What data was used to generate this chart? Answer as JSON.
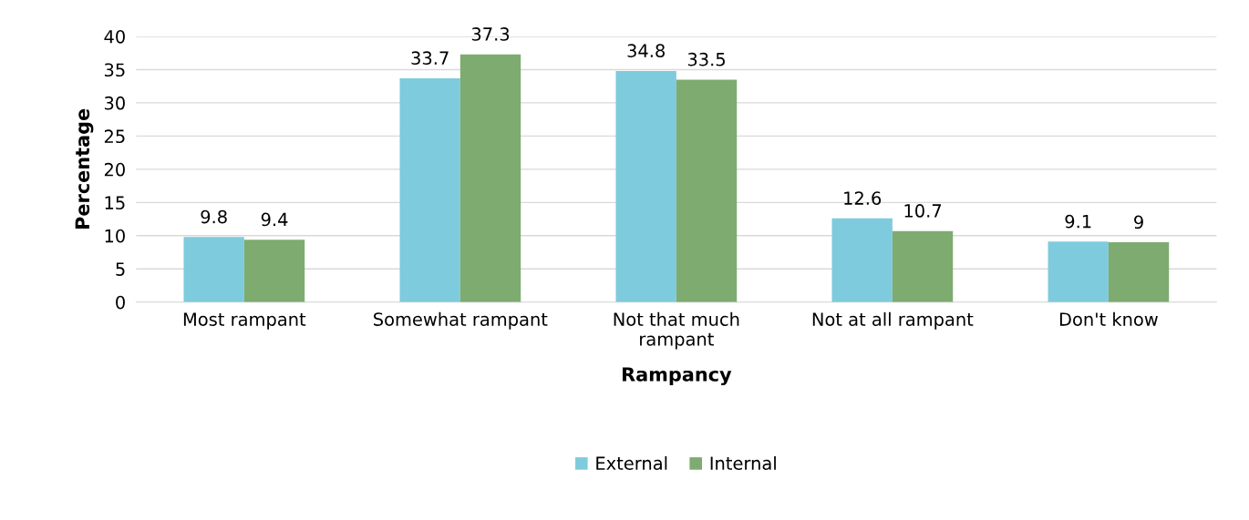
{
  "chart_data": {
    "type": "bar",
    "xlabel": "Rampancy",
    "ylabel": "Percentage",
    "categories": [
      "Most rampant",
      "Somewhat rampant",
      "Not that much\nrampant",
      "Not at all rampant",
      "Don't know"
    ],
    "series": [
      {
        "name": "External",
        "color": "#7ecbdd",
        "values": [
          9.8,
          33.7,
          34.8,
          12.6,
          9.1
        ]
      },
      {
        "name": "Internal",
        "color": "#7eab6f",
        "values": [
          9.4,
          37.3,
          33.5,
          10.7,
          9
        ]
      }
    ],
    "ylim": [
      0,
      40
    ],
    "yticks": [
      0,
      5,
      10,
      15,
      20,
      25,
      30,
      35,
      40
    ],
    "grid": "y",
    "legend": "bottom",
    "data_labels": true
  }
}
